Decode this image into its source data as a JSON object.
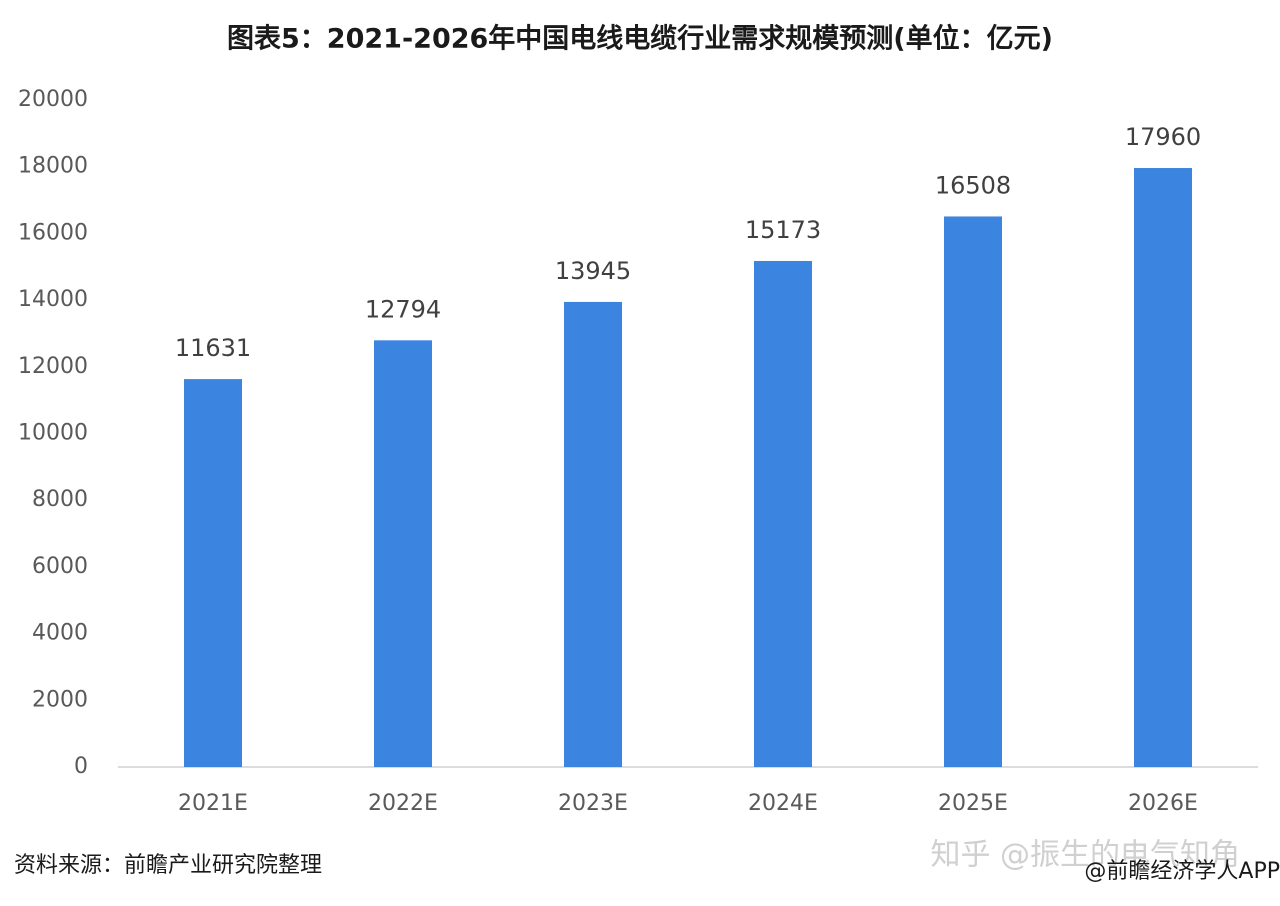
{
  "chart_data": {
    "type": "bar",
    "title": "图表5：2021-2026年中国电线电缆行业需求规模预测(单位：亿元)",
    "categories": [
      "2021E",
      "2022E",
      "2023E",
      "2024E",
      "2025E",
      "2026E"
    ],
    "values": [
      11631,
      12794,
      13945,
      15173,
      16508,
      17960
    ],
    "color": "#3b85e0",
    "ylim": [
      0,
      20000
    ],
    "yticks": [
      0,
      2000,
      4000,
      6000,
      8000,
      10000,
      12000,
      14000,
      16000,
      18000,
      20000
    ],
    "grid": false,
    "source": "资料来源：前瞻产业研究院整理",
    "watermark": "知乎 @振生的电气知角",
    "credit": "@前瞻经济学人APP"
  }
}
